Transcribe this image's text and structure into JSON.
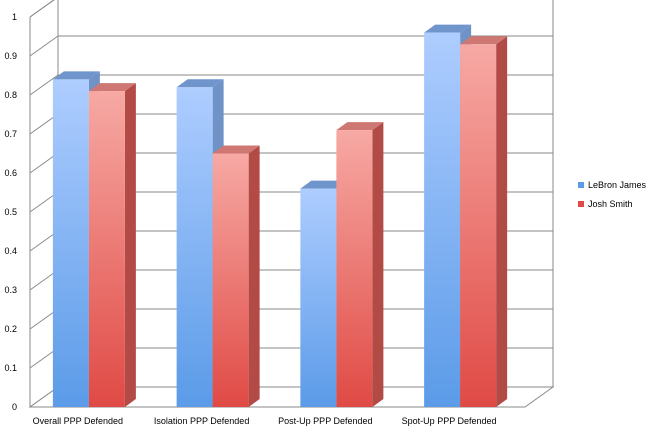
{
  "chart_data": {
    "type": "bar",
    "categories": [
      "Overall PPP Defended",
      "Isolation PPP Defended",
      "Post-Up PPP Defended",
      "Spot-Up PPP Defended"
    ],
    "series": [
      {
        "name": "LeBron James",
        "values": [
          0.84,
          0.82,
          0.56,
          0.96
        ]
      },
      {
        "name": "Josh Smith",
        "values": [
          0.81,
          0.65,
          0.71,
          0.93
        ]
      }
    ],
    "ylim": [
      0,
      1
    ],
    "yticks": [
      "0",
      "0.1",
      "0.2",
      "0.3",
      "0.4",
      "0.5",
      "0.6",
      "0.7",
      "0.8",
      "0.9",
      "1"
    ],
    "grid": true,
    "legend": "right",
    "colors": {
      "series1_top": "#aecdff",
      "series1_bottom": "#5b9be8",
      "series2_top": "#f7a9a4",
      "series2_bottom": "#e04a45"
    }
  }
}
